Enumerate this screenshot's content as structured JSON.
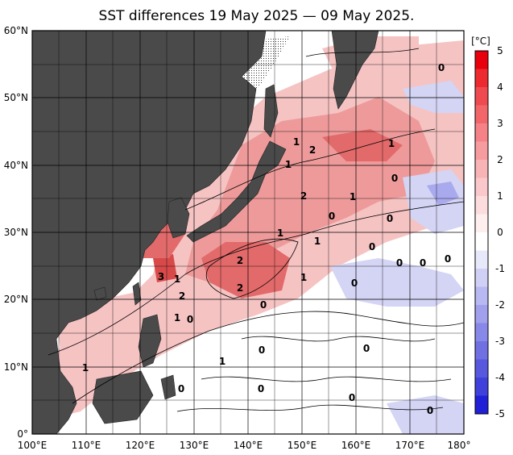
{
  "title": "SST differences 19 May 2025 — 09 May 2025.",
  "axes": {
    "lon_labels": [
      "100°E",
      "110°E",
      "120°E",
      "130°E",
      "140°E",
      "150°E",
      "160°E",
      "170°E",
      "180°"
    ],
    "lat_labels": [
      "60°N",
      "50°N",
      "40°N",
      "30°N",
      "20°N",
      "10°N",
      "0°"
    ],
    "lon_range": [
      100,
      180
    ],
    "lat_range": [
      0,
      60
    ]
  },
  "colorbar": {
    "unit": "[°C]",
    "ticks": [
      "5",
      "4",
      "3",
      "2",
      "1",
      "0",
      "-1",
      "-2",
      "-3",
      "-4",
      "-5"
    ],
    "range": [
      -5,
      5
    ]
  },
  "contour_labels": [
    "0",
    "1",
    "0",
    "1",
    "2",
    "1",
    "1",
    "0",
    "2",
    "1",
    "0",
    "0",
    "1",
    "1",
    "0",
    "0",
    "0",
    "0",
    "2",
    "1",
    "3",
    "2",
    "2",
    "1",
    "0",
    "1",
    "0",
    "0",
    "1",
    "0",
    "0",
    "0",
    "0",
    "0"
  ],
  "colors": {
    "land": "#4a4a4a",
    "ocean_base": "#ffffff",
    "warm": "#e8454f",
    "cool": "#6a6ae8"
  }
}
